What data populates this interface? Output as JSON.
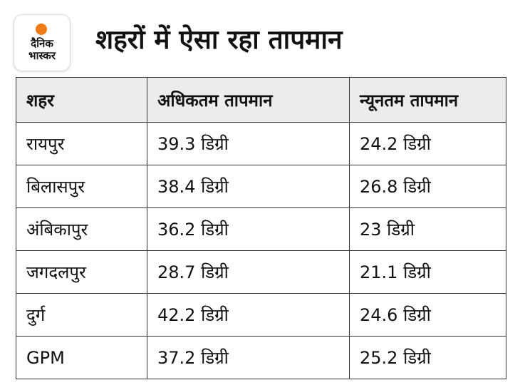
{
  "logo": {
    "line1": "दैनिक",
    "line2": "भास्कर",
    "accent_color": "#f07c18"
  },
  "title": "शहरों में ऐसा रहा तापमान",
  "table": {
    "headers": [
      "शहर",
      "अधिकतम तापमान",
      "न्यूनतम तापमान"
    ],
    "rows": [
      [
        "रायपुर",
        "39.3 डिग्री",
        "24.2 डिग्री"
      ],
      [
        "बिलासपुर",
        "38.4 डिग्री",
        "26.8 डिग्री"
      ],
      [
        "अंबिकापुर",
        "36.2 डिग्री",
        "23 डिग्री"
      ],
      [
        "जगदलपुर",
        "28.7 डिग्री",
        "21.1 डिग्री"
      ],
      [
        "दुर्ग",
        "42.2 डिग्री",
        "24.6 डिग्री"
      ],
      [
        "GPM",
        "37.2 डिग्री",
        "25.2 डिग्री"
      ]
    ]
  }
}
